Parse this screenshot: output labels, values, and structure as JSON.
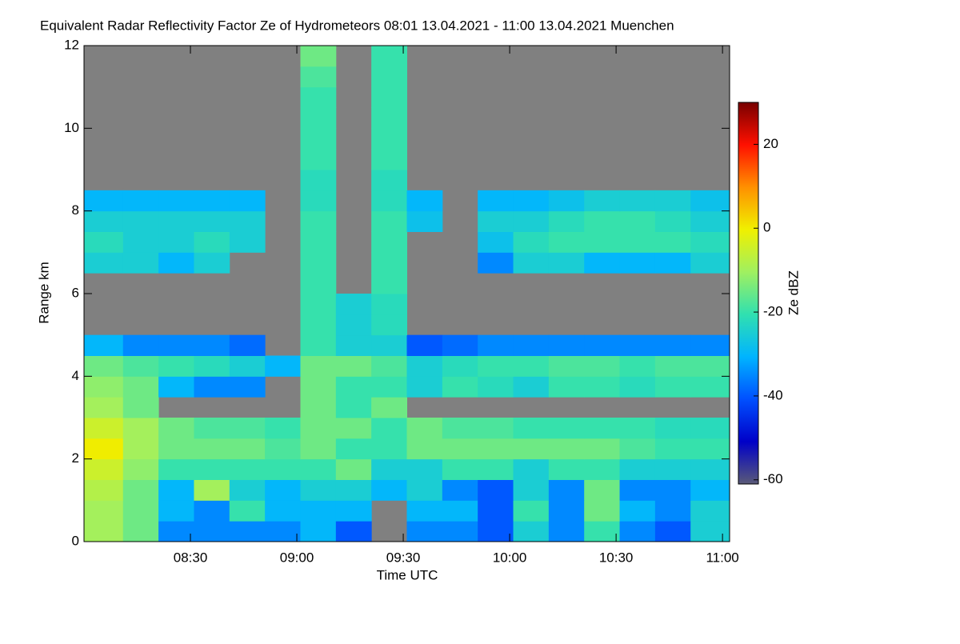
{
  "chart_data": {
    "type": "heatmap",
    "title": "Equivalent Radar Reflectivity Factor Ze of Hydrometeors   08:01 13.04.2021 - 11:00 13.04.2021 Muenchen",
    "xlabel": "Time UTC",
    "ylabel": "Range km",
    "colorbar_label": "Ze dBZ",
    "xlim": [
      480,
      662
    ],
    "xticks": [
      {
        "value": 510,
        "label": "08:30"
      },
      {
        "value": 540,
        "label": "09:00"
      },
      {
        "value": 570,
        "label": "09:30"
      },
      {
        "value": 600,
        "label": "10:00"
      },
      {
        "value": 630,
        "label": "10:30"
      },
      {
        "value": 660,
        "label": "11:00"
      }
    ],
    "ylim": [
      0,
      12
    ],
    "yticks": [
      0,
      2,
      4,
      6,
      8,
      10,
      12
    ],
    "clim": [
      -61,
      30
    ],
    "cticks": [
      -60,
      -40,
      -20,
      0,
      20
    ],
    "colorscale": [
      "#5a5a78",
      "#0000c8",
      "#0050ff",
      "#00b4ff",
      "#30e0b0",
      "#a0f060",
      "#f0f000",
      "#ff9000",
      "#ff1000",
      "#780000"
    ],
    "missing_color": "#808080",
    "x": [
      486,
      496,
      506,
      516,
      526,
      536,
      546,
      556,
      566,
      576,
      586,
      596,
      606,
      616,
      626,
      636,
      646,
      656
    ],
    "y": [
      0.25,
      0.75,
      1.25,
      1.75,
      2.25,
      2.75,
      3.25,
      3.75,
      4.25,
      4.75,
      5.25,
      5.75,
      6.25,
      6.75,
      7.25,
      7.75,
      8.25,
      8.75,
      9.25,
      9.75,
      10.25,
      10.75,
      11.25,
      11.75
    ],
    "z": [
      [
        -10,
        -15,
        -35,
        -35,
        -35,
        -35,
        -30,
        -40,
        null,
        -35,
        -35,
        -40,
        -25,
        -35,
        -20,
        -35,
        -40,
        -25
      ],
      [
        -10,
        -15,
        -30,
        -35,
        -20,
        -30,
        -30,
        -30,
        null,
        -30,
        -30,
        -40,
        -20,
        -35,
        -15,
        -30,
        -35,
        -25
      ],
      [
        -8,
        -15,
        -30,
        -10,
        -25,
        -30,
        -25,
        -25,
        -30,
        -25,
        -35,
        -40,
        -25,
        -35,
        -15,
        -35,
        -35,
        -30
      ],
      [
        -5,
        -12,
        -20,
        -20,
        -20,
        -20,
        -20,
        -15,
        -25,
        -25,
        -20,
        -20,
        -25,
        -20,
        -20,
        -25,
        -25,
        -25
      ],
      [
        0,
        -10,
        -15,
        -15,
        -15,
        -18,
        -15,
        -20,
        -20,
        -15,
        -15,
        -15,
        -15,
        -15,
        -15,
        -18,
        -20,
        -20
      ],
      [
        -5,
        -10,
        -15,
        -18,
        -18,
        -20,
        -15,
        -15,
        -20,
        -15,
        -18,
        -18,
        -20,
        -20,
        -20,
        -20,
        -22,
        -22
      ],
      [
        -10,
        -15,
        null,
        null,
        null,
        null,
        -15,
        -20,
        -15,
        null,
        null,
        null,
        null,
        null,
        null,
        null,
        null,
        null
      ],
      [
        -12,
        -15,
        -30,
        -35,
        -35,
        null,
        -15,
        -20,
        -20,
        -25,
        -20,
        -22,
        -25,
        -20,
        -20,
        -22,
        -20,
        -20
      ],
      [
        -15,
        -18,
        -20,
        -22,
        -25,
        -30,
        -15,
        -15,
        -18,
        -25,
        -22,
        -20,
        -20,
        -18,
        -18,
        -20,
        -18,
        -18
      ],
      [
        -30,
        -35,
        -35,
        -35,
        -38,
        null,
        -20,
        -25,
        -25,
        -40,
        -38,
        -35,
        -35,
        -35,
        -35,
        -35,
        -35,
        -35
      ],
      [
        null,
        null,
        null,
        null,
        null,
        null,
        -20,
        -25,
        -22,
        null,
        null,
        null,
        null,
        null,
        null,
        null,
        null,
        null
      ],
      [
        null,
        null,
        null,
        null,
        null,
        null,
        -20,
        -25,
        -22,
        null,
        null,
        null,
        null,
        null,
        null,
        null,
        null,
        null
      ],
      [
        null,
        null,
        null,
        null,
        null,
        null,
        -20,
        null,
        -20,
        null,
        null,
        null,
        null,
        null,
        null,
        null,
        null,
        null
      ],
      [
        -25,
        -25,
        -30,
        -25,
        null,
        null,
        -20,
        null,
        -20,
        null,
        null,
        -35,
        -25,
        -25,
        -30,
        -30,
        -30,
        -25
      ],
      [
        -22,
        -25,
        -25,
        -22,
        -25,
        null,
        -20,
        null,
        -20,
        null,
        null,
        -28,
        -22,
        -20,
        -20,
        -20,
        -20,
        -22
      ],
      [
        -25,
        -25,
        -25,
        -25,
        -25,
        null,
        -20,
        null,
        -20,
        -28,
        null,
        -25,
        -25,
        -22,
        -20,
        -20,
        -22,
        -25
      ],
      [
        -30,
        -30,
        -30,
        -30,
        -30,
        null,
        -22,
        null,
        -22,
        -30,
        null,
        -30,
        -30,
        -28,
        -25,
        -25,
        -25,
        -28
      ],
      [
        null,
        null,
        null,
        null,
        null,
        null,
        -22,
        null,
        -22,
        null,
        null,
        null,
        null,
        null,
        null,
        null,
        null,
        null
      ],
      [
        null,
        null,
        null,
        null,
        null,
        null,
        -20,
        null,
        -20,
        null,
        null,
        null,
        null,
        null,
        null,
        null,
        null,
        null
      ],
      [
        null,
        null,
        null,
        null,
        null,
        null,
        -20,
        null,
        -20,
        null,
        null,
        null,
        null,
        null,
        null,
        null,
        null,
        null
      ],
      [
        null,
        null,
        null,
        null,
        null,
        null,
        -20,
        null,
        -20,
        null,
        null,
        null,
        null,
        null,
        null,
        null,
        null,
        null
      ],
      [
        null,
        null,
        null,
        null,
        null,
        null,
        -20,
        null,
        -20,
        null,
        null,
        null,
        null,
        null,
        null,
        null,
        null,
        null
      ],
      [
        null,
        null,
        null,
        null,
        null,
        null,
        -18,
        null,
        -20,
        null,
        null,
        null,
        null,
        null,
        null,
        null,
        null,
        null
      ],
      [
        null,
        null,
        null,
        null,
        null,
        null,
        -15,
        null,
        -20,
        null,
        null,
        null,
        null,
        null,
        null,
        null,
        null,
        null
      ]
    ]
  }
}
